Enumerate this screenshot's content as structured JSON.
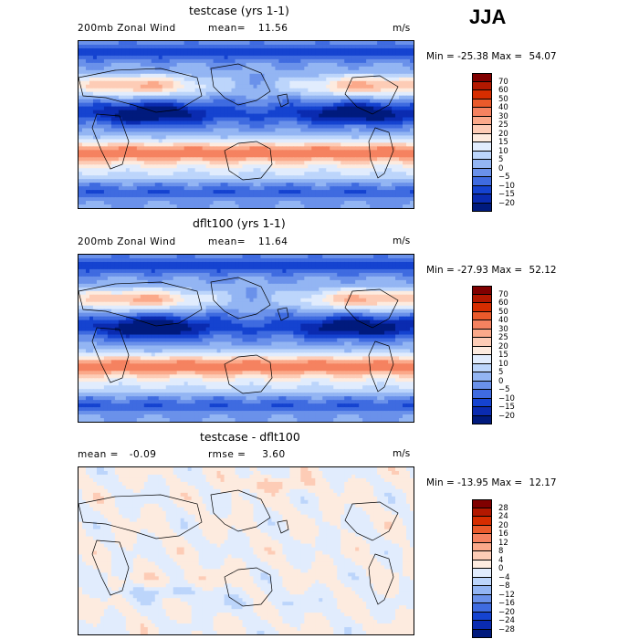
{
  "header": {
    "season": "JJA"
  },
  "chart_data": [
    {
      "type": "heatmap",
      "title": "testcase (yrs 1-1)",
      "variable": "200mb Zonal Wind",
      "mean_label": "mean=",
      "mean": "11.56",
      "units": "m/s",
      "min_label": "Min =",
      "min": "-25.38",
      "max_label": "Max =",
      "max": "54.07",
      "colorbar_labels": [
        "70",
        "60",
        "50",
        "40",
        "30",
        "25",
        "20",
        "15",
        "10",
        "5",
        "0",
        "−5",
        "−10",
        "−15",
        "−20"
      ],
      "colors": [
        "#800000",
        "#b31800",
        "#d62d00",
        "#ea5a2b",
        "#f58260",
        "#fba98a",
        "#fdccb6",
        "#fdebdf",
        "#e1ecfd",
        "#bcd5fb",
        "#93b5f3",
        "#6a91ea",
        "#3f6be0",
        "#1543d0",
        "#0a2bb0",
        "#001a7d"
      ],
      "pattern": "full"
    },
    {
      "type": "heatmap",
      "title": "dflt100 (yrs 1-1)",
      "variable": "200mb Zonal Wind",
      "mean_label": "mean=",
      "mean": "11.64",
      "units": "m/s",
      "min_label": "Min =",
      "min": "-27.93",
      "max_label": "Max =",
      "max": "52.12",
      "colorbar_labels": [
        "70",
        "60",
        "50",
        "40",
        "30",
        "25",
        "20",
        "15",
        "10",
        "5",
        "0",
        "−5",
        "−10",
        "−15",
        "−20"
      ],
      "colors": [
        "#800000",
        "#b31800",
        "#d62d00",
        "#ea5a2b",
        "#f58260",
        "#fba98a",
        "#fdccb6",
        "#fdebdf",
        "#e1ecfd",
        "#bcd5fb",
        "#93b5f3",
        "#6a91ea",
        "#3f6be0",
        "#1543d0",
        "#0a2bb0",
        "#001a7d"
      ],
      "pattern": "full"
    },
    {
      "type": "heatmap",
      "title": "testcase - dflt100",
      "mean_label": "mean =",
      "mean": "-0.09",
      "rmse_label": "rmse =",
      "rmse": "3.60",
      "units": "m/s",
      "min_label": "Min =",
      "min": "-13.95",
      "max_label": "Max =",
      "max": "12.17",
      "colorbar_labels": [
        "28",
        "24",
        "20",
        "16",
        "12",
        "8",
        "4",
        "0",
        "−4",
        "−8",
        "−12",
        "−16",
        "−20",
        "−24",
        "−28"
      ],
      "colors": [
        "#800000",
        "#b31800",
        "#d62d00",
        "#ea5a2b",
        "#f58260",
        "#fba98a",
        "#fdccb6",
        "#fdebdf",
        "#e1ecfd",
        "#bcd5fb",
        "#93b5f3",
        "#6a91ea",
        "#3f6be0",
        "#1543d0",
        "#0a2bb0",
        "#001a7d"
      ],
      "pattern": "diff"
    }
  ]
}
